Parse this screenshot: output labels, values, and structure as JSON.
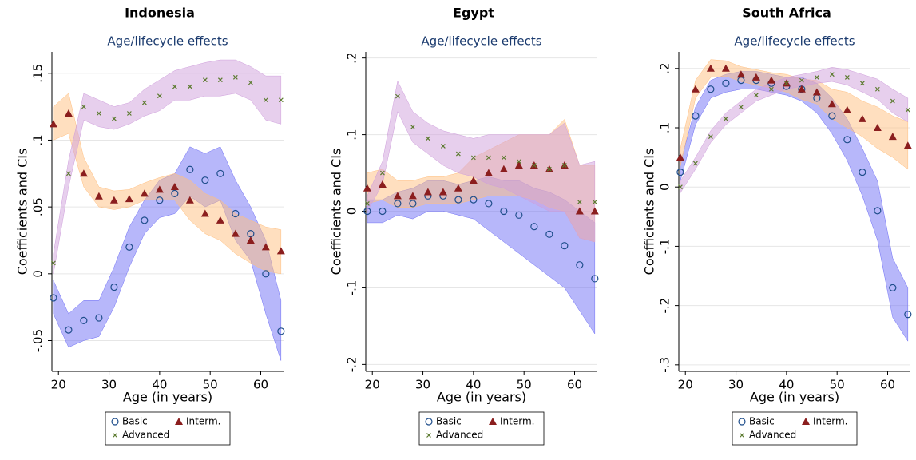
{
  "chart_data": [
    {
      "type": "scatter",
      "title": "Indonesia",
      "subtitle": "Age/lifecycle effects",
      "xlabel": "Age (in years)",
      "ylabel": "Coefficients and CIs",
      "x": [
        19,
        22,
        25,
        28,
        31,
        34,
        37,
        40,
        43,
        46,
        49,
        52,
        55,
        58,
        61,
        64
      ],
      "xlim": [
        18.7,
        64.5
      ],
      "xticks": [
        20,
        30,
        40,
        50,
        60
      ],
      "ylim": [
        -0.073,
        0.166
      ],
      "yticks": [
        {
          "value": -0.05,
          "label": "-.05"
        },
        0,
        {
          "value": 0.05,
          "label": ".05"
        },
        {
          "value": 0.1,
          "label": ".1"
        },
        {
          "value": 0.15,
          "label": ".15"
        }
      ],
      "grid": true,
      "series": [
        {
          "name": "Basic",
          "marker": "circle",
          "color": "#1f4e8c",
          "band_color": "#6f6ff5",
          "values": [
            -0.018,
            -0.042,
            -0.035,
            -0.033,
            -0.01,
            0.02,
            0.04,
            0.055,
            0.06,
            0.078,
            0.07,
            0.075,
            0.045,
            0.03,
            0.0,
            -0.043
          ],
          "lower": [
            -0.03,
            -0.055,
            -0.05,
            -0.047,
            -0.025,
            0.005,
            0.03,
            0.042,
            0.045,
            0.058,
            0.05,
            0.055,
            0.025,
            0.01,
            -0.03,
            -0.065
          ],
          "upper": [
            -0.005,
            -0.03,
            -0.02,
            -0.02,
            0.005,
            0.035,
            0.055,
            0.07,
            0.075,
            0.095,
            0.09,
            0.095,
            0.07,
            0.05,
            0.025,
            -0.02
          ]
        },
        {
          "name": "Interm.",
          "marker": "triangle",
          "color": "#8b1e1e",
          "band_color": "#ffbf80",
          "values": [
            0.112,
            0.12,
            0.075,
            0.058,
            0.055,
            0.056,
            0.06,
            0.063,
            0.065,
            0.055,
            0.045,
            0.04,
            0.03,
            0.025,
            0.02,
            0.017
          ],
          "lower": [
            0.1,
            0.105,
            0.065,
            0.05,
            0.048,
            0.05,
            0.055,
            0.055,
            0.055,
            0.04,
            0.03,
            0.025,
            0.015,
            0.008,
            0.002,
            0.0
          ],
          "upper": [
            0.125,
            0.135,
            0.087,
            0.065,
            0.062,
            0.063,
            0.068,
            0.072,
            0.075,
            0.07,
            0.06,
            0.055,
            0.045,
            0.04,
            0.035,
            0.033
          ]
        },
        {
          "name": "Advanced",
          "marker": "x",
          "color": "#5b7a2e",
          "band_color": "#cf9fdc",
          "values": [
            0.008,
            0.075,
            0.125,
            0.12,
            0.116,
            0.12,
            0.128,
            0.133,
            0.14,
            0.14,
            0.145,
            0.145,
            0.147,
            0.143,
            0.13,
            0.13
          ],
          "lower": [
            0.0,
            0.065,
            0.115,
            0.11,
            0.108,
            0.112,
            0.118,
            0.122,
            0.13,
            0.13,
            0.133,
            0.133,
            0.135,
            0.13,
            0.115,
            0.112
          ],
          "upper": [
            0.015,
            0.085,
            0.135,
            0.13,
            0.125,
            0.128,
            0.138,
            0.145,
            0.152,
            0.155,
            0.158,
            0.16,
            0.16,
            0.155,
            0.148,
            0.148
          ]
        }
      ]
    },
    {
      "type": "scatter",
      "title": "Egypt",
      "subtitle": "Age/lifecycle effects",
      "xlabel": "Age (in years)",
      "ylabel": "Coefficients and CIs",
      "x": [
        19,
        22,
        25,
        28,
        31,
        34,
        37,
        40,
        43,
        46,
        49,
        52,
        55,
        58,
        61,
        64
      ],
      "xlim": [
        18.7,
        64.5
      ],
      "xticks": [
        20,
        30,
        40,
        50,
        60
      ],
      "ylim": [
        -0.209,
        0.208
      ],
      "yticks": [
        {
          "value": -0.2,
          "label": "-.2"
        },
        {
          "value": -0.1,
          "label": "-.1"
        },
        0,
        {
          "value": 0.1,
          "label": ".1"
        },
        {
          "value": 0.2,
          "label": ".2"
        }
      ],
      "grid": true,
      "series": [
        {
          "name": "Basic",
          "marker": "circle",
          "color": "#1f4e8c",
          "band_color": "#6f6ff5",
          "values": [
            0.0,
            0.0,
            0.01,
            0.01,
            0.02,
            0.02,
            0.015,
            0.015,
            0.01,
            0.0,
            -0.005,
            -0.02,
            -0.03,
            -0.045,
            -0.07,
            -0.088
          ],
          "lower": [
            -0.015,
            -0.015,
            -0.005,
            -0.01,
            0.0,
            0.0,
            -0.005,
            -0.01,
            -0.025,
            -0.04,
            -0.055,
            -0.07,
            -0.085,
            -0.1,
            -0.13,
            -0.16
          ],
          "upper": [
            0.015,
            0.015,
            0.025,
            0.03,
            0.04,
            0.04,
            0.035,
            0.04,
            0.045,
            0.04,
            0.04,
            0.03,
            0.025,
            0.015,
            0.0,
            -0.015
          ]
        },
        {
          "name": "Interm.",
          "marker": "triangle",
          "color": "#8b1e1e",
          "band_color": "#ffbf80",
          "values": [
            0.03,
            0.035,
            0.02,
            0.02,
            0.025,
            0.025,
            0.03,
            0.04,
            0.05,
            0.055,
            0.06,
            0.06,
            0.055,
            0.06,
            0.0,
            0.0
          ],
          "lower": [
            0.01,
            0.015,
            0.005,
            0.005,
            0.01,
            0.01,
            0.01,
            0.015,
            0.02,
            0.02,
            0.02,
            0.015,
            0.005,
            0.0,
            -0.035,
            -0.04
          ],
          "upper": [
            0.05,
            0.055,
            0.04,
            0.04,
            0.045,
            0.045,
            0.05,
            0.07,
            0.08,
            0.09,
            0.1,
            0.1,
            0.1,
            0.12,
            0.06,
            0.06
          ]
        },
        {
          "name": "Advanced",
          "marker": "x",
          "color": "#5b7a2e",
          "band_color": "#cf9fdc",
          "values": [
            0.01,
            0.05,
            0.15,
            0.11,
            0.095,
            0.085,
            0.075,
            0.07,
            0.07,
            0.07,
            0.065,
            0.06,
            0.055,
            0.06,
            0.012,
            0.012
          ],
          "lower": [
            0.0,
            0.035,
            0.13,
            0.09,
            0.075,
            0.06,
            0.05,
            0.045,
            0.035,
            0.03,
            0.02,
            0.01,
            0.0,
            0.0,
            -0.035,
            -0.04
          ],
          "upper": [
            0.02,
            0.065,
            0.17,
            0.13,
            0.115,
            0.105,
            0.1,
            0.095,
            0.1,
            0.1,
            0.1,
            0.1,
            0.1,
            0.115,
            0.06,
            0.065
          ]
        }
      ]
    },
    {
      "type": "scatter",
      "title": "South Africa",
      "subtitle": "Age/lifecycle effects",
      "xlabel": "Age (in years)",
      "ylabel": "Coefficients and CIs",
      "x": [
        19,
        22,
        25,
        28,
        31,
        34,
        37,
        40,
        43,
        46,
        49,
        52,
        55,
        58,
        61,
        64
      ],
      "xlim": [
        18.7,
        64.5
      ],
      "xticks": [
        20,
        30,
        40,
        50,
        60
      ],
      "ylim": [
        -0.311,
        0.228
      ],
      "yticks": [
        {
          "value": -0.3,
          "label": "-.3"
        },
        {
          "value": -0.2,
          "label": "-.2"
        },
        {
          "value": -0.1,
          "label": "-.1"
        },
        0,
        {
          "value": 0.1,
          "label": ".1"
        },
        {
          "value": 0.2,
          "label": ".2"
        }
      ],
      "grid": true,
      "series": [
        {
          "name": "Basic",
          "marker": "circle",
          "color": "#1f4e8c",
          "band_color": "#6f6ff5",
          "values": [
            0.025,
            0.12,
            0.165,
            0.175,
            0.18,
            0.18,
            0.175,
            0.17,
            0.165,
            0.15,
            0.12,
            0.08,
            0.025,
            -0.04,
            -0.17,
            -0.215
          ],
          "lower": [
            0.01,
            0.105,
            0.15,
            0.16,
            0.165,
            0.165,
            0.16,
            0.155,
            0.145,
            0.125,
            0.09,
            0.045,
            -0.015,
            -0.09,
            -0.22,
            -0.26
          ],
          "upper": [
            0.04,
            0.135,
            0.18,
            0.19,
            0.195,
            0.195,
            0.19,
            0.185,
            0.185,
            0.175,
            0.15,
            0.115,
            0.065,
            0.01,
            -0.12,
            -0.17
          ]
        },
        {
          "name": "Interm.",
          "marker": "triangle",
          "color": "#8b1e1e",
          "band_color": "#ffbf80",
          "values": [
            0.05,
            0.165,
            0.2,
            0.2,
            0.19,
            0.185,
            0.18,
            0.175,
            0.165,
            0.16,
            0.14,
            0.13,
            0.115,
            0.1,
            0.085,
            0.07
          ],
          "lower": [
            0.035,
            0.15,
            0.185,
            0.187,
            0.178,
            0.172,
            0.167,
            0.16,
            0.148,
            0.14,
            0.115,
            0.1,
            0.085,
            0.065,
            0.05,
            0.03
          ],
          "upper": [
            0.065,
            0.18,
            0.215,
            0.213,
            0.203,
            0.198,
            0.193,
            0.19,
            0.182,
            0.18,
            0.165,
            0.16,
            0.145,
            0.135,
            0.12,
            0.11
          ]
        },
        {
          "name": "Advanced",
          "marker": "x",
          "color": "#5b7a2e",
          "band_color": "#cf9fdc",
          "values": [
            0.0,
            0.04,
            0.085,
            0.115,
            0.135,
            0.155,
            0.165,
            0.175,
            0.18,
            0.185,
            0.19,
            0.185,
            0.175,
            0.165,
            0.145,
            0.13
          ],
          "lower": [
            -0.01,
            0.03,
            0.075,
            0.105,
            0.125,
            0.145,
            0.155,
            0.165,
            0.17,
            0.175,
            0.178,
            0.172,
            0.16,
            0.148,
            0.125,
            0.11
          ],
          "upper": [
            0.01,
            0.05,
            0.095,
            0.125,
            0.145,
            0.165,
            0.175,
            0.185,
            0.19,
            0.195,
            0.202,
            0.198,
            0.19,
            0.182,
            0.165,
            0.15
          ]
        }
      ]
    }
  ]
}
